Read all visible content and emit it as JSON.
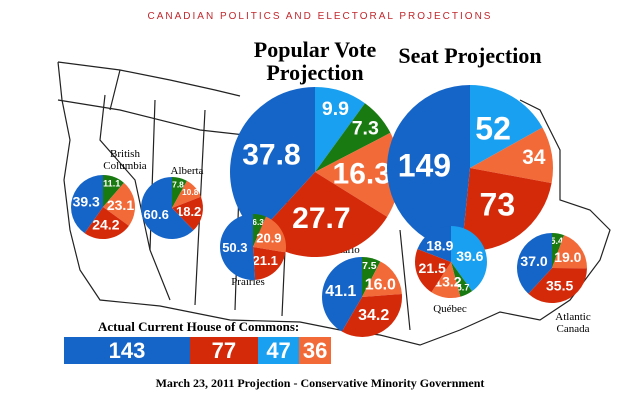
{
  "blog_title": "CANADIAN POLITICS AND ELECTORAL PROJECTIONS",
  "colors": {
    "conservative": "#1565c8",
    "liberal": "#d42a0a",
    "bloc": "#1aa0f0",
    "ndp": "#f26a38",
    "green": "#1a7a12"
  },
  "chart_data": [
    {
      "type": "pie",
      "title": "Popular Vote Projection",
      "slices": [
        {
          "party": "bloc",
          "value": "9.9"
        },
        {
          "party": "green",
          "value": "7.3"
        },
        {
          "party": "ndp",
          "value": "16.3"
        },
        {
          "party": "liberal",
          "value": "27.7"
        },
        {
          "party": "conservative",
          "value": "37.8"
        }
      ]
    },
    {
      "type": "pie",
      "title": "Seat Projection",
      "slices": [
        {
          "party": "bloc",
          "value": "52"
        },
        {
          "party": "ndp",
          "value": "34"
        },
        {
          "party": "liberal",
          "value": "73"
        },
        {
          "party": "conservative",
          "value": "149"
        }
      ]
    },
    {
      "type": "pie",
      "title": "British Columbia",
      "slices": [
        {
          "party": "green",
          "value": "11.1"
        },
        {
          "party": "ndp",
          "value": "23.1"
        },
        {
          "party": "liberal",
          "value": "24.2"
        },
        {
          "party": "conservative",
          "value": "39.3"
        }
      ]
    },
    {
      "type": "pie",
      "title": "Alberta",
      "slices": [
        {
          "party": "green",
          "value": "7.8"
        },
        {
          "party": "ndp",
          "value": "10.8"
        },
        {
          "party": "liberal",
          "value": "18.2"
        },
        {
          "party": "conservative",
          "value": "60.6"
        }
      ]
    },
    {
      "type": "pie",
      "title": "Prairies",
      "slices": [
        {
          "party": "green",
          "value": "6.3"
        },
        {
          "party": "ndp",
          "value": "20.9"
        },
        {
          "party": "liberal",
          "value": "21.1"
        },
        {
          "party": "conservative",
          "value": "50.3"
        }
      ]
    },
    {
      "type": "pie",
      "title": "Ontario",
      "slices": [
        {
          "party": "green",
          "value": "7.5"
        },
        {
          "party": "ndp",
          "value": "16.0"
        },
        {
          "party": "liberal",
          "value": "34.2"
        },
        {
          "party": "conservative",
          "value": "41.1"
        }
      ]
    },
    {
      "type": "pie",
      "title": "Québec",
      "slices": [
        {
          "party": "bloc",
          "value": "39.6"
        },
        {
          "party": "green",
          "value": "5.7"
        },
        {
          "party": "ndp",
          "value": "13.2"
        },
        {
          "party": "liberal",
          "value": "21.5"
        },
        {
          "party": "conservative",
          "value": "18.9"
        }
      ]
    },
    {
      "type": "pie",
      "title": "Atlantic Canada",
      "slices": [
        {
          "party": "green",
          "value": "5.4"
        },
        {
          "party": "ndp",
          "value": "19.0"
        },
        {
          "party": "liberal",
          "value": "35.5"
        },
        {
          "party": "conservative",
          "value": "37.0"
        }
      ]
    }
  ],
  "house": {
    "title": "Actual Current House of Commons:",
    "seats": [
      {
        "party": "conservative",
        "value": "143"
      },
      {
        "party": "liberal",
        "value": "77"
      },
      {
        "party": "bloc",
        "value": "47"
      },
      {
        "party": "ndp",
        "value": "36"
      }
    ]
  },
  "footer": "March 23, 2011 Projection - Conservative Minority Government"
}
